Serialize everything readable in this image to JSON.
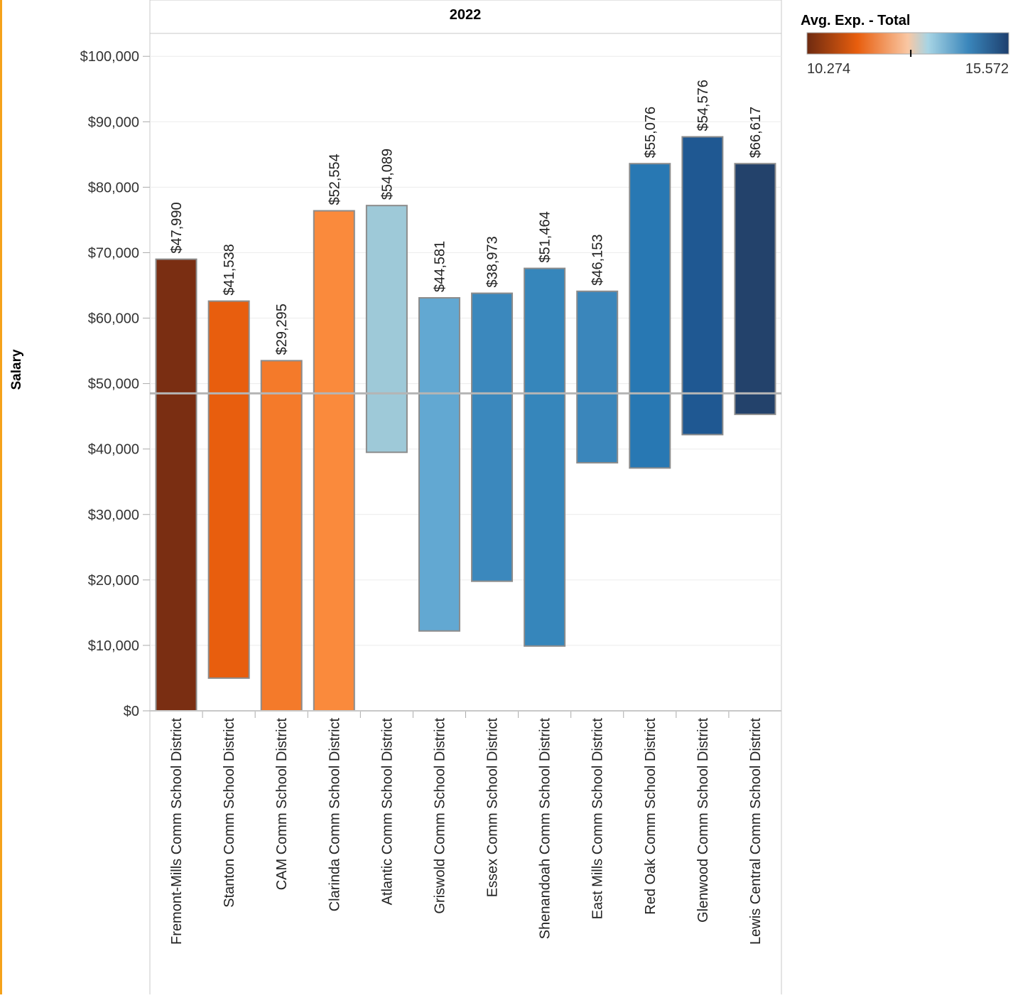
{
  "chart_data": {
    "type": "range_bar",
    "panel_title": "2022",
    "y_label": "Salary",
    "categories": [
      "Fremont-Mills Comm School District",
      "Stanton Comm School District",
      "CAM Comm School District",
      "Clarinda Comm School District",
      "Atlantic Comm School District",
      "Griswold Comm School District",
      "Essex Comm School District",
      "Shenandoah Comm School District",
      "East Mills Comm School District",
      "Red Oak Comm School District",
      "Glenwood Comm School District",
      "Lewis Central Comm School District"
    ],
    "low": [
      0,
      5000,
      0,
      0,
      39500,
      12200,
      19800,
      9900,
      37900,
      37100,
      42200,
      45300
    ],
    "high": [
      69000,
      62600,
      53500,
      76400,
      77200,
      63100,
      63800,
      67600,
      64100,
      83600,
      87700,
      83600
    ],
    "bar_labels": [
      "$47,990",
      "$41,538",
      "$29,295",
      "$52,554",
      "$54,089",
      "$44,581",
      "$38,973",
      "$51,464",
      "$46,153",
      "$55,076",
      "$54,576",
      "$66,617"
    ],
    "colors": [
      "#7a2e12",
      "#e85e0e",
      "#f47a2a",
      "#fa8a3c",
      "#9ec9d8",
      "#62a8d2",
      "#3b88bd",
      "#3686bb",
      "#3a86bb",
      "#2878b3",
      "#1f5892",
      "#23426b"
    ],
    "reference_line": 48500,
    "ylim": [
      0,
      103500
    ],
    "yticks": [
      {
        "value": 0,
        "label": "$0"
      },
      {
        "value": 10000,
        "label": "$10,000"
      },
      {
        "value": 20000,
        "label": "$20,000"
      },
      {
        "value": 30000,
        "label": "$30,000"
      },
      {
        "value": 40000,
        "label": "$40,000"
      },
      {
        "value": 50000,
        "label": "$50,000"
      },
      {
        "value": 60000,
        "label": "$60,000"
      },
      {
        "value": 70000,
        "label": "$70,000"
      },
      {
        "value": 80000,
        "label": "$80,000"
      },
      {
        "value": 90000,
        "label": "$90,000"
      },
      {
        "value": 100000,
        "label": "$100,000"
      }
    ],
    "grid": true,
    "legend": {
      "title": "Avg. Exp. - Total",
      "min": 10.274,
      "max": 15.572,
      "marker": 13
    }
  }
}
